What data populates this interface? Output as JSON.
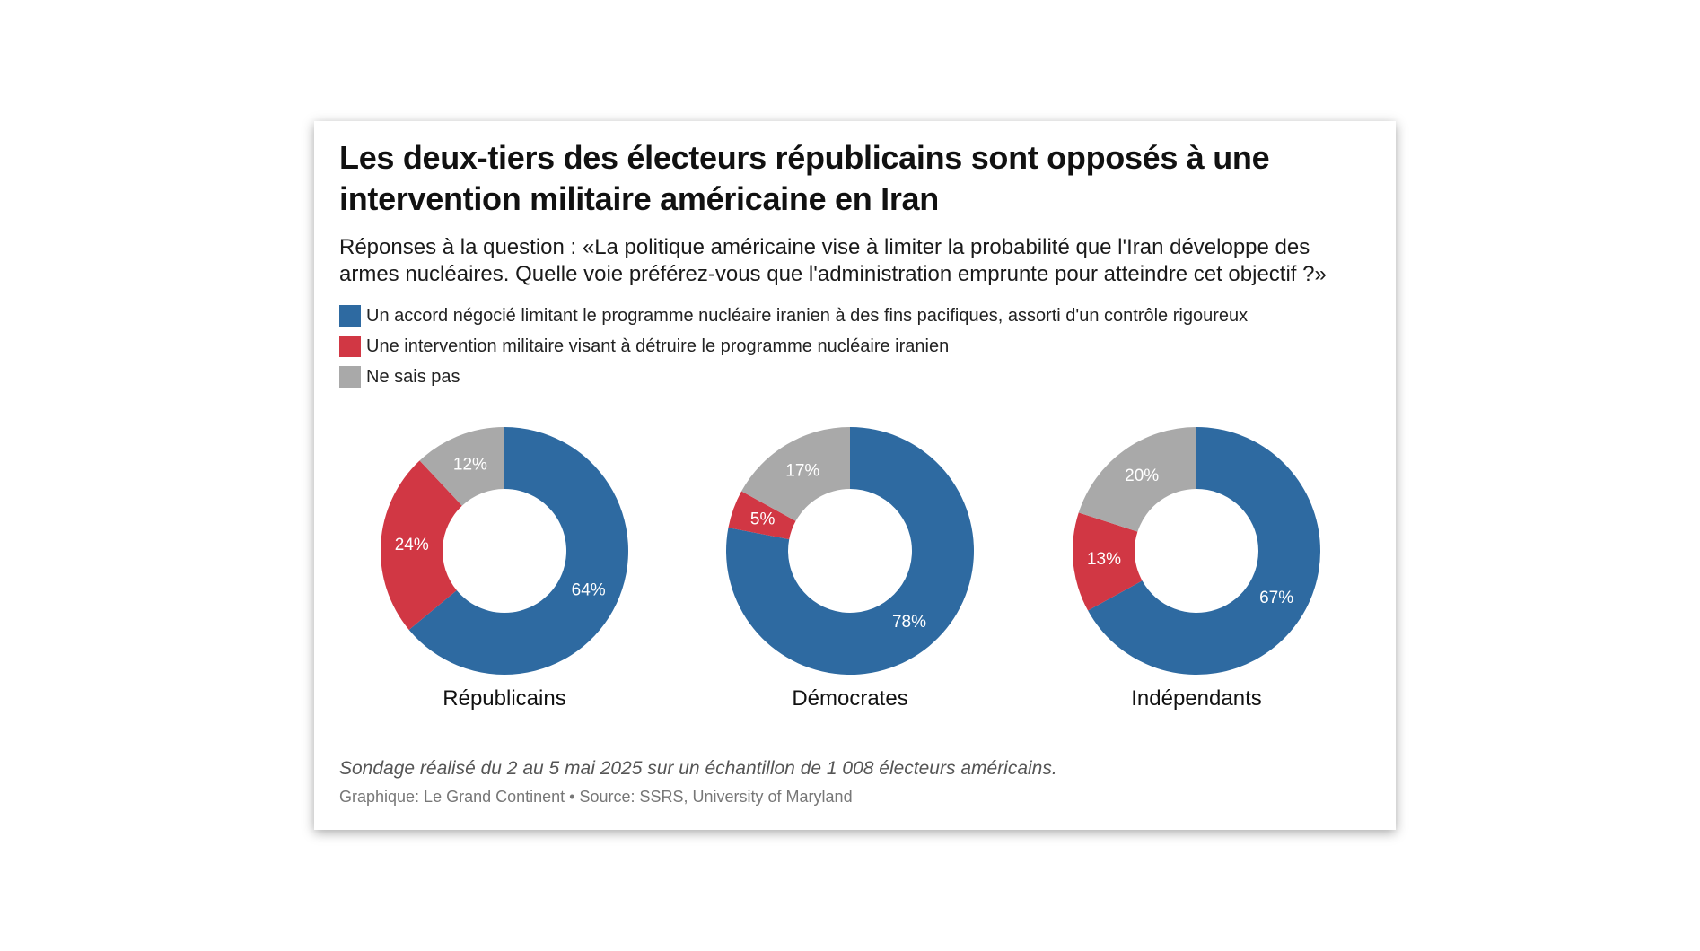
{
  "title": "Les deux-tiers des électeurs républicains sont opposés à une intervention militaire américaine en Iran",
  "subtitle": "Réponses à la question : «La politique américaine vise à limiter la probabilité que l'Iran développe des armes nucléaires. Quelle voie préférez-vous que l'administration emprunte pour atteindre cet objectif ?»",
  "legend": [
    {
      "label": "Un accord négocié limitant le programme nucléaire iranien à des fins pacifiques, assorti d'un contrôle rigoureux",
      "color": "#2e6aa1"
    },
    {
      "label": "Une intervention militaire visant à détruire le programme nucléaire iranien",
      "color": "#d13744"
    },
    {
      "label": "Ne sais pas",
      "color": "#a9a9a9"
    }
  ],
  "chart_data": {
    "type": "pie",
    "variant": "donut",
    "categories": [
      "Un accord négocié limitant le programme nucléaire iranien à des fins pacifiques, assorti d'un contrôle rigoureux",
      "Une intervention militaire visant à détruire le programme nucléaire iranien",
      "Ne sais pas"
    ],
    "colors": [
      "#2e6aa1",
      "#d13744",
      "#a9a9a9"
    ],
    "series": [
      {
        "name": "Républicains",
        "values": [
          64,
          24,
          12
        ],
        "labels": [
          "64%",
          "24%",
          "12%"
        ]
      },
      {
        "name": "Démocrates",
        "values": [
          78,
          5,
          17
        ],
        "labels": [
          "78%",
          "5%",
          "17%"
        ]
      },
      {
        "name": "Indépendants",
        "values": [
          67,
          13,
          20
        ],
        "labels": [
          "67%",
          "13%",
          "20%"
        ]
      }
    ]
  },
  "note": "Sondage réalisé du 2 au 5 mai 2025 sur un échantillon de 1 008 électeurs américains.",
  "credit": "Graphique: Le Grand Continent • Source: SSRS, University of Maryland"
}
